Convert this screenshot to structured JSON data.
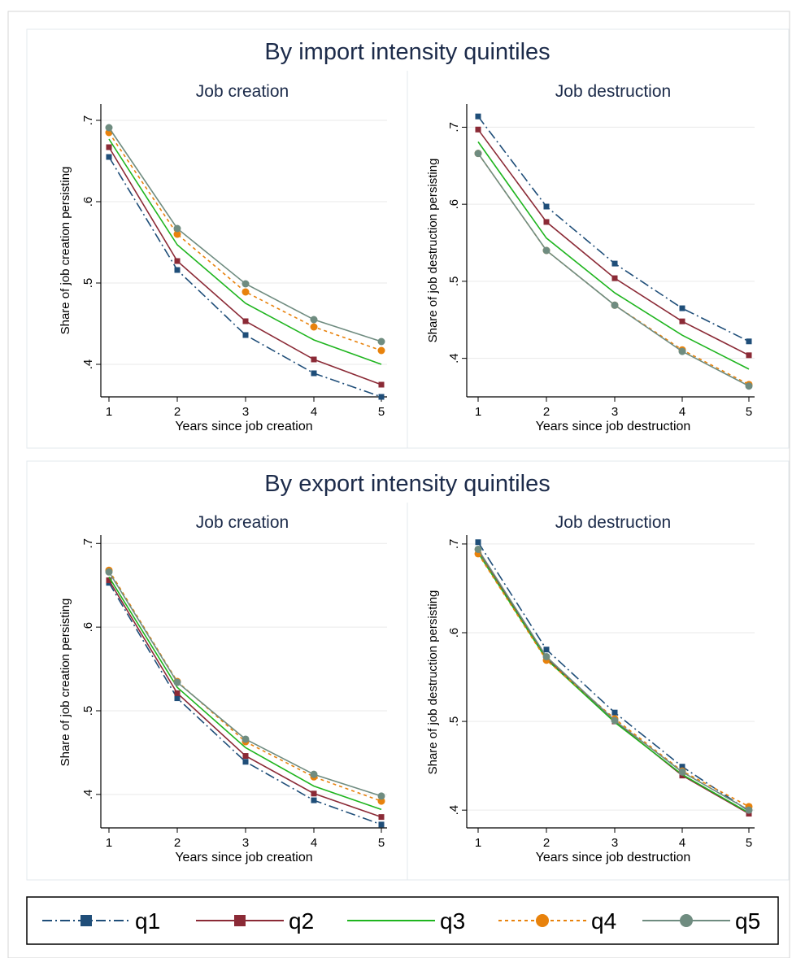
{
  "legend": [
    {
      "name": "q1",
      "color": "#1f4e79",
      "marker": "square",
      "dash": "dashdot"
    },
    {
      "name": "q2",
      "color": "#8b2a36",
      "marker": "square",
      "dash": "solid"
    },
    {
      "name": "q3",
      "color": "#1fb51f",
      "marker": "none",
      "dash": "solid"
    },
    {
      "name": "q4",
      "color": "#e8820c",
      "marker": "circle",
      "dash": "dotted"
    },
    {
      "name": "q5",
      "color": "#6f8c80",
      "marker": "circle",
      "dash": "solid"
    }
  ],
  "chart_data": [
    {
      "type": "line",
      "section": "By import intensity quintiles",
      "title": "Job creation",
      "xlabel": "Years since job creation",
      "ylabel": "Share of job creation persisting",
      "x": [
        1,
        2,
        3,
        4,
        5
      ],
      "ylim": [
        0.36,
        0.72
      ],
      "yticks": [
        ".4",
        ".5",
        ".6",
        ".7"
      ],
      "series": [
        {
          "name": "q1",
          "values": [
            0.655,
            0.516,
            0.436,
            0.389,
            0.36
          ]
        },
        {
          "name": "q2",
          "values": [
            0.667,
            0.527,
            0.453,
            0.406,
            0.375
          ]
        },
        {
          "name": "q3",
          "values": [
            0.677,
            0.547,
            0.475,
            0.43,
            0.4
          ]
        },
        {
          "name": "q4",
          "values": [
            0.685,
            0.56,
            0.489,
            0.446,
            0.417
          ]
        },
        {
          "name": "q5",
          "values": [
            0.691,
            0.567,
            0.499,
            0.455,
            0.428
          ]
        }
      ]
    },
    {
      "type": "line",
      "section": "By import intensity quintiles",
      "title": "Job destruction",
      "xlabel": "Years since job destruction",
      "ylabel": "Share of job destruction persisting",
      "x": [
        1,
        2,
        3,
        4,
        5
      ],
      "ylim": [
        0.35,
        0.73
      ],
      "yticks": [
        ".4",
        ".5",
        ".6",
        ".7"
      ],
      "series": [
        {
          "name": "q1",
          "values": [
            0.714,
            0.597,
            0.523,
            0.465,
            0.422
          ]
        },
        {
          "name": "q2",
          "values": [
            0.697,
            0.577,
            0.504,
            0.448,
            0.404
          ]
        },
        {
          "name": "q3",
          "values": [
            0.681,
            0.556,
            0.485,
            0.43,
            0.386
          ]
        },
        {
          "name": "q4",
          "values": [
            0.666,
            0.54,
            0.469,
            0.411,
            0.366
          ]
        },
        {
          "name": "q5",
          "values": [
            0.666,
            0.54,
            0.469,
            0.409,
            0.364
          ]
        }
      ]
    },
    {
      "type": "line",
      "section": "By export intensity quintiles",
      "title": "Job creation",
      "xlabel": "Years since job creation",
      "ylabel": "Share of job creation persisting",
      "x": [
        1,
        2,
        3,
        4,
        5
      ],
      "ylim": [
        0.36,
        0.71
      ],
      "yticks": [
        ".4",
        ".5",
        ".6",
        ".7"
      ],
      "series": [
        {
          "name": "q1",
          "values": [
            0.653,
            0.515,
            0.439,
            0.393,
            0.364
          ]
        },
        {
          "name": "q2",
          "values": [
            0.656,
            0.521,
            0.446,
            0.401,
            0.373
          ]
        },
        {
          "name": "q3",
          "values": [
            0.66,
            0.528,
            0.456,
            0.41,
            0.382
          ]
        },
        {
          "name": "q4",
          "values": [
            0.668,
            0.535,
            0.463,
            0.421,
            0.392
          ]
        },
        {
          "name": "q5",
          "values": [
            0.666,
            0.534,
            0.466,
            0.424,
            0.398
          ]
        }
      ]
    },
    {
      "type": "line",
      "section": "By export intensity quintiles",
      "title": "Job destruction",
      "xlabel": "Years since job destruction",
      "ylabel": "Share of job destruction persisting",
      "x": [
        1,
        2,
        3,
        4,
        5
      ],
      "ylim": [
        0.38,
        0.71
      ],
      "yticks": [
        ".4",
        ".5",
        ".6",
        ".7"
      ],
      "series": [
        {
          "name": "q1",
          "values": [
            0.702,
            0.581,
            0.51,
            0.449,
            0.399
          ]
        },
        {
          "name": "q2",
          "values": [
            0.693,
            0.571,
            0.5,
            0.439,
            0.396
          ]
        },
        {
          "name": "q3",
          "values": [
            0.69,
            0.57,
            0.499,
            0.44,
            0.397
          ]
        },
        {
          "name": "q4",
          "values": [
            0.689,
            0.569,
            0.503,
            0.444,
            0.404
          ]
        },
        {
          "name": "q5",
          "values": [
            0.694,
            0.573,
            0.501,
            0.443,
            0.4
          ]
        }
      ]
    }
  ]
}
